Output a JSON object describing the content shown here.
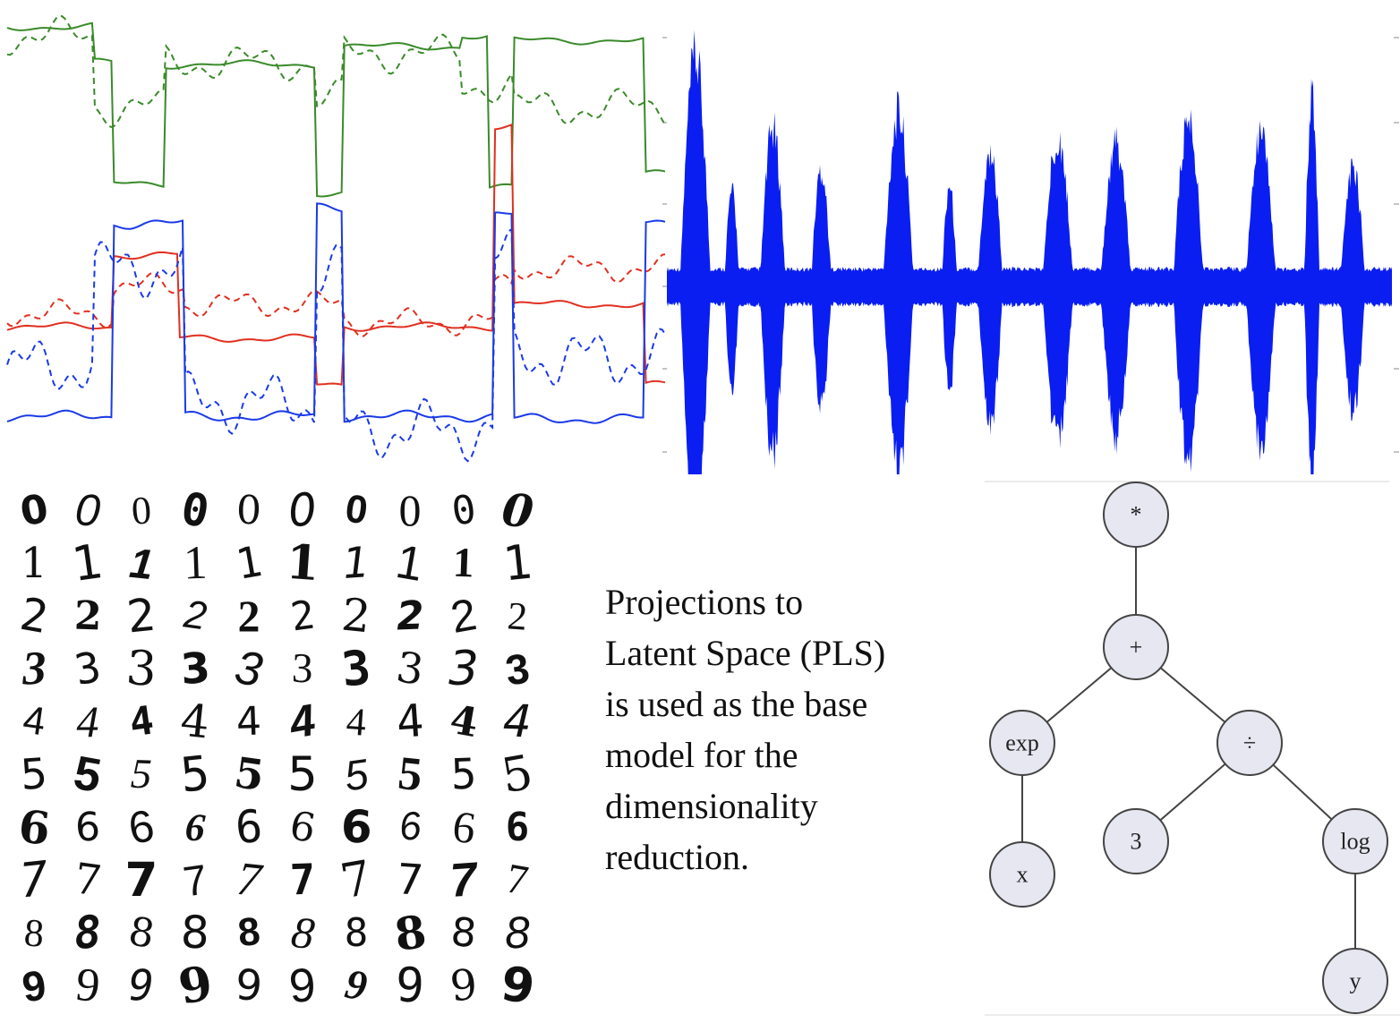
{
  "panels": {
    "time_series": {
      "series": [
        {
          "color": "#3a8a2a",
          "style": "solid"
        },
        {
          "color": "#3a8a2a",
          "style": "dashed"
        },
        {
          "color": "#e03020",
          "style": "solid"
        },
        {
          "color": "#e03020",
          "style": "dashed"
        },
        {
          "color": "#1a3ae8",
          "style": "solid"
        },
        {
          "color": "#1a3ae8",
          "style": "dashed"
        }
      ]
    },
    "waveform": {
      "color": "#0a1ef2"
    },
    "digits": {
      "rows": [
        [
          "0",
          "0",
          "0",
          "0",
          "0",
          "0",
          "0",
          "0",
          "0",
          "0"
        ],
        [
          "1",
          "1",
          "1",
          "1",
          "1",
          "1",
          "1",
          "1",
          "1",
          "1"
        ],
        [
          "2",
          "2",
          "2",
          "2",
          "2",
          "2",
          "2",
          "2",
          "2",
          "2"
        ],
        [
          "3",
          "3",
          "3",
          "3",
          "3",
          "3",
          "3",
          "3",
          "3",
          "3"
        ],
        [
          "4",
          "4",
          "4",
          "4",
          "4",
          "4",
          "4",
          "4",
          "4",
          "4"
        ],
        [
          "5",
          "5",
          "5",
          "5",
          "5",
          "5",
          "5",
          "5",
          "5",
          "5"
        ],
        [
          "6",
          "6",
          "6",
          "6",
          "6",
          "6",
          "6",
          "6",
          "6",
          "6"
        ],
        [
          "7",
          "7",
          "7",
          "7",
          "7",
          "7",
          "7",
          "7",
          "7",
          "7"
        ],
        [
          "8",
          "8",
          "8",
          "8",
          "8",
          "8",
          "8",
          "8",
          "8",
          "8"
        ],
        [
          "9",
          "9",
          "9",
          "9",
          "9",
          "9",
          "9",
          "9",
          "9",
          "9"
        ]
      ]
    },
    "caption": {
      "lines": [
        "Projections to",
        "Latent Space (PLS)",
        "is used as the base",
        "model for the",
        "dimensionality",
        "reduction."
      ]
    },
    "expression_tree": {
      "node_fill": "#e6e7f1",
      "nodes": {
        "root": "*",
        "plus": "+",
        "exp": "exp",
        "div": "÷",
        "x": "x",
        "three": "3",
        "log": "log",
        "y": "y"
      }
    }
  }
}
